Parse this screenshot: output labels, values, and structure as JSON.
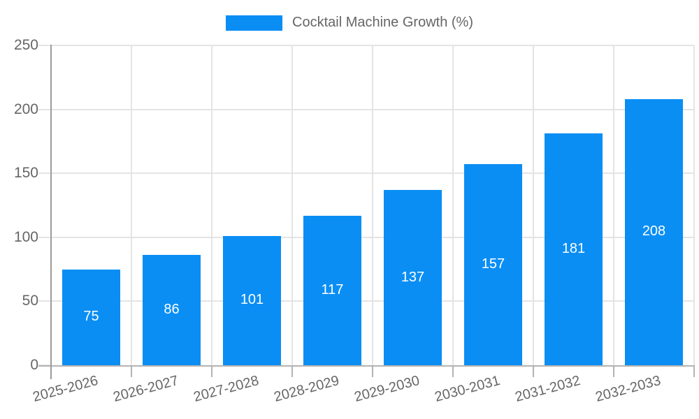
{
  "legend": {
    "label": "Cocktail Machine Growth (%)"
  },
  "chart_data": {
    "type": "bar",
    "title": "Cocktail Machine Growth (%)",
    "categories": [
      "2025-2026",
      "2026-2027",
      "2027-2028",
      "2028-2029",
      "2029-2030",
      "2030-2031",
      "2031-2032",
      "2032-2033"
    ],
    "series": [
      {
        "name": "Cocktail Machine Growth (%)",
        "values": [
          75,
          86,
          101,
          117,
          137,
          157,
          181,
          208
        ]
      }
    ],
    "values": [
      75,
      86,
      101,
      117,
      137,
      157,
      181,
      208
    ],
    "value_labels": [
      "75",
      "86",
      "101",
      "117",
      "137",
      "157",
      "181",
      "208"
    ],
    "xlabel": "",
    "ylabel": "",
    "ylim": [
      0,
      250
    ],
    "yticks": [
      0,
      50,
      100,
      150,
      200,
      250
    ],
    "grid": true,
    "legend_position": "top",
    "x_label_rotation_deg": -15,
    "colors": {
      "bar": "#0A8EF4",
      "value_label": "#FFFFFF",
      "axis_text": "#666666",
      "gridline": "#E4E4E4",
      "axis_line": "#9C9C9C"
    }
  }
}
